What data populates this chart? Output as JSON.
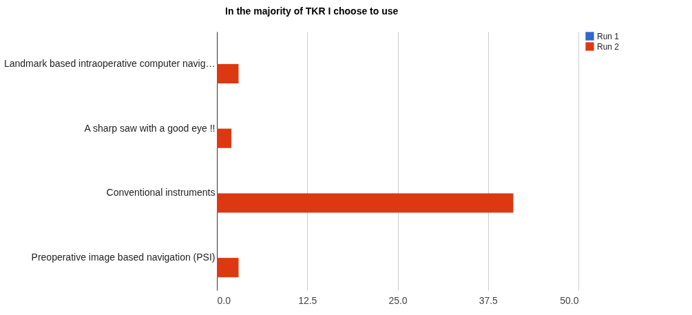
{
  "chart_data": {
    "type": "bar",
    "orientation": "horizontal",
    "title": "In the majority of TKR I choose to use",
    "categories": [
      "Landmark based intraoperative computer navig…",
      "A sharp saw with a good eye !!",
      "Conventional instruments",
      "Preoperative image based navigation (PSI)"
    ],
    "series": [
      {
        "name": "Run 1",
        "color": "#3366cc",
        "values": [
          null,
          null,
          null,
          null
        ]
      },
      {
        "name": "Run 2",
        "color": "#dc3912",
        "values": [
          3,
          2,
          41,
          3
        ]
      }
    ],
    "xlim": [
      0,
      50
    ],
    "xticks": [
      {
        "value": 0,
        "label": "0.0"
      },
      12.5,
      {
        "value": 25,
        "label": "25.0"
      },
      37.5,
      {
        "value": 50,
        "label": "50.0"
      }
    ],
    "grid": "x",
    "legend": "top right"
  }
}
